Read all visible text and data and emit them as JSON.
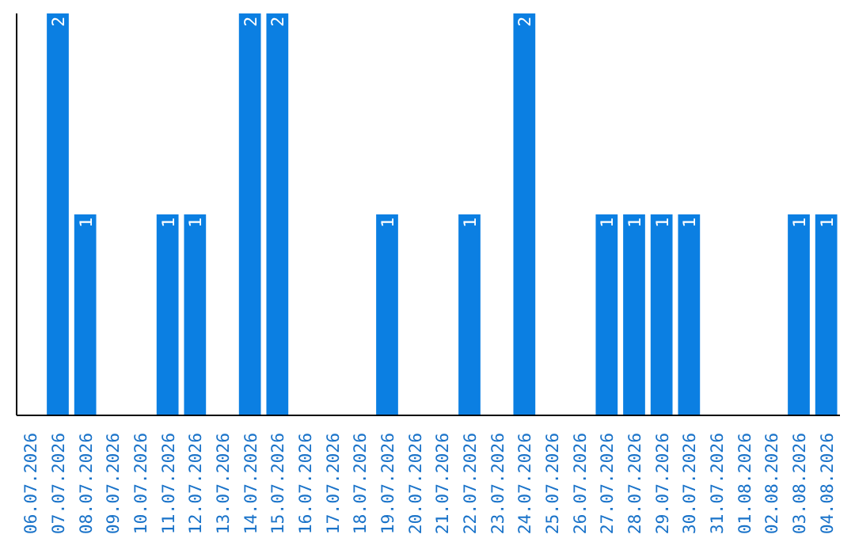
{
  "chart_data": {
    "type": "bar",
    "categories": [
      "06.07.2026",
      "07.07.2026",
      "08.07.2026",
      "09.07.2026",
      "10.07.2026",
      "11.07.2026",
      "12.07.2026",
      "13.07.2026",
      "14.07.2026",
      "15.07.2026",
      "16.07.2026",
      "17.07.2026",
      "18.07.2026",
      "19.07.2026",
      "20.07.2026",
      "21.07.2026",
      "22.07.2026",
      "23.07.2026",
      "24.07.2026",
      "25.07.2026",
      "26.07.2026",
      "27.07.2026",
      "28.07.2026",
      "29.07.2026",
      "30.07.2026",
      "31.07.2026",
      "01.08.2026",
      "02.08.2026",
      "03.08.2026",
      "04.08.2026"
    ],
    "values": [
      0,
      2,
      1,
      0,
      0,
      1,
      1,
      0,
      2,
      2,
      0,
      0,
      0,
      1,
      0,
      0,
      1,
      0,
      2,
      0,
      0,
      1,
      1,
      1,
      1,
      0,
      0,
      0,
      1,
      1
    ],
    "value_labels": [
      null,
      "2",
      "1",
      null,
      null,
      "1",
      "1",
      null,
      "2",
      "2",
      null,
      null,
      null,
      "1",
      null,
      null,
      "1",
      null,
      "2",
      null,
      null,
      "1",
      "1",
      "1",
      "1",
      null,
      null,
      null,
      "1",
      "1"
    ],
    "color": "#0b7fe2",
    "ylim": [
      0,
      2
    ],
    "tick_labels": "x"
  }
}
